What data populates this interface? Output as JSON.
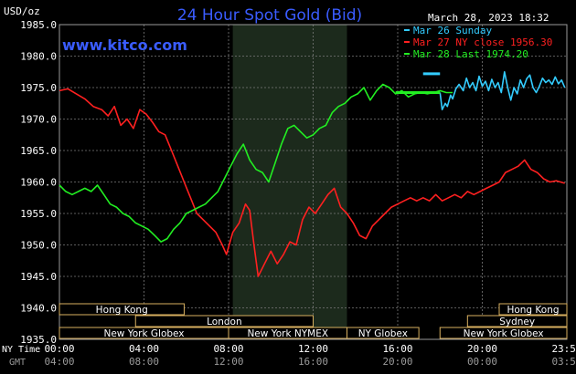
{
  "chart_data": {
    "type": "line",
    "title": "24 Hour Spot Gold (Bid)",
    "watermark": "www.kitco.com",
    "timestamp": "March 28, 2023 18:32",
    "ylabel": "USD/oz",
    "ylim": [
      1935.0,
      1985.0
    ],
    "yticks": [
      "1985.0",
      "1980.0",
      "1975.0",
      "1970.0",
      "1965.0",
      "1960.0",
      "1955.0",
      "1950.0",
      "1945.0",
      "1940.0",
      "1935.0"
    ],
    "xlim": [
      0,
      24
    ],
    "xticks_ny": [
      "00:00",
      "04:00",
      "08:00",
      "12:00",
      "16:00",
      "20:00",
      "23:59"
    ],
    "xticks_gmt": [
      "04:00",
      "08:00",
      "12:00",
      "16:00",
      "20:00",
      "00:00",
      "03:59"
    ],
    "axis_row_labels": {
      "ny": "NY Time",
      "gmt": "GMT"
    },
    "grid": true,
    "legend_position": "top-right",
    "colors": {
      "sunday": "#33ccff",
      "close": "#ff2020",
      "last": "#22ee22",
      "grid": "#7a7a7a",
      "title": "#3a5cff",
      "session_shade": "#1c2a1c",
      "session_border": "#d8b060"
    },
    "legend": [
      {
        "label": "Mar 26 Sunday",
        "series": "sunday"
      },
      {
        "label": "Mar 27 NY close 1956.30",
        "series": "close"
      },
      {
        "label": "Mar 28 Last 1974.20",
        "series": "last"
      }
    ],
    "series": [
      {
        "name": "Mar 26 Sunday",
        "key": "sunday",
        "x": [
          18.0,
          18.1,
          18.25,
          18.35,
          18.5,
          18.6,
          18.75,
          18.9,
          19.1,
          19.25,
          19.4,
          19.55,
          19.7,
          19.85,
          20.0,
          20.15,
          20.3,
          20.45,
          20.6,
          20.75,
          20.9,
          21.05,
          21.2,
          21.35,
          21.5,
          21.65,
          21.8,
          21.95,
          22.1,
          22.25,
          22.4,
          22.55,
          22.7,
          22.85,
          23.0,
          23.15,
          23.3,
          23.45,
          23.6,
          23.75,
          23.9
        ],
        "y": [
          1974.2,
          1971.5,
          1972.5,
          1972.0,
          1973.8,
          1973.2,
          1974.8,
          1975.5,
          1974.5,
          1976.5,
          1975.0,
          1975.8,
          1974.5,
          1976.8,
          1975.2,
          1976.0,
          1974.5,
          1976.3,
          1975.0,
          1975.8,
          1974.2,
          1977.5,
          1975.0,
          1973.0,
          1975.0,
          1974.0,
          1976.2,
          1975.0,
          1976.4,
          1977.0,
          1975.0,
          1974.2,
          1975.2,
          1976.5,
          1975.8,
          1976.2,
          1975.5,
          1976.7,
          1975.6,
          1976.2,
          1975.0
        ]
      },
      {
        "name": "Mar 27 NY close 1956.30",
        "key": "close",
        "x": [
          0.0,
          0.4,
          0.8,
          1.2,
          1.6,
          2.0,
          2.3,
          2.6,
          2.9,
          3.2,
          3.5,
          3.8,
          4.1,
          4.4,
          4.7,
          5.0,
          5.3,
          5.6,
          5.9,
          6.2,
          6.5,
          6.8,
          7.1,
          7.4,
          7.7,
          7.9,
          8.2,
          8.5,
          8.8,
          9.0,
          9.2,
          9.4,
          9.7,
          10.0,
          10.3,
          10.6,
          10.9,
          11.2,
          11.5,
          11.8,
          12.1,
          12.4,
          12.7,
          13.0,
          13.3,
          13.6,
          13.9,
          14.2,
          14.5,
          14.8,
          15.1,
          15.4,
          15.7,
          16.0,
          16.3,
          16.6,
          16.9,
          17.2,
          17.5,
          17.8,
          18.1,
          18.4,
          18.7,
          19.0,
          19.3,
          19.6,
          19.9,
          20.2,
          20.5,
          20.8,
          21.1,
          21.4,
          21.7,
          22.0,
          22.3,
          22.6,
          22.9,
          23.2,
          23.5,
          23.9
        ],
        "y": [
          1974.5,
          1974.8,
          1974.0,
          1973.2,
          1972.0,
          1971.5,
          1970.5,
          1972.0,
          1969.0,
          1970.0,
          1968.5,
          1971.5,
          1970.8,
          1969.5,
          1968.0,
          1967.5,
          1965.0,
          1962.5,
          1960.0,
          1957.5,
          1955.0,
          1954.0,
          1953.0,
          1952.0,
          1950.0,
          1948.5,
          1952.0,
          1953.5,
          1956.5,
          1955.5,
          1950.0,
          1945.0,
          1947.0,
          1949.0,
          1947.0,
          1948.5,
          1950.5,
          1950.0,
          1954.0,
          1956.0,
          1955.0,
          1956.5,
          1958.0,
          1959.0,
          1956.0,
          1955.0,
          1953.5,
          1951.5,
          1951.0,
          1953.0,
          1954.0,
          1955.0,
          1956.0,
          1956.5,
          1957.0,
          1957.5,
          1957.0,
          1957.5,
          1957.0,
          1958.0,
          1957.0,
          1957.5,
          1958.0,
          1957.5,
          1958.5,
          1958.0,
          1958.5,
          1959.0,
          1959.5,
          1960.0,
          1961.5,
          1962.0,
          1962.5,
          1963.5,
          1962.0,
          1961.5,
          1960.5,
          1960.0,
          1960.2,
          1959.8
        ]
      },
      {
        "name": "Mar 28 Last 1974.20",
        "key": "last",
        "x": [
          0.0,
          0.3,
          0.6,
          0.9,
          1.2,
          1.5,
          1.8,
          2.1,
          2.4,
          2.7,
          3.0,
          3.3,
          3.6,
          3.9,
          4.2,
          4.5,
          4.8,
          5.1,
          5.4,
          5.7,
          6.0,
          6.3,
          6.6,
          6.9,
          7.2,
          7.5,
          7.8,
          8.1,
          8.4,
          8.7,
          9.0,
          9.3,
          9.6,
          9.9,
          10.2,
          10.5,
          10.8,
          11.1,
          11.4,
          11.7,
          12.0,
          12.3,
          12.6,
          12.9,
          13.2,
          13.5,
          13.8,
          14.1,
          14.4,
          14.7,
          15.0,
          15.3,
          15.6,
          15.9,
          16.2,
          16.5,
          16.8,
          17.1,
          17.4,
          17.7,
          18.0,
          18.3,
          18.6
        ],
        "y": [
          1959.5,
          1958.5,
          1958.0,
          1958.5,
          1959.0,
          1958.5,
          1959.5,
          1958.0,
          1956.5,
          1956.0,
          1955.0,
          1954.5,
          1953.5,
          1953.0,
          1952.5,
          1951.5,
          1950.5,
          1951.0,
          1952.5,
          1953.5,
          1955.0,
          1955.5,
          1956.0,
          1956.5,
          1957.5,
          1958.5,
          1960.5,
          1962.5,
          1964.5,
          1966.0,
          1963.5,
          1962.0,
          1961.5,
          1960.0,
          1963.0,
          1966.0,
          1968.5,
          1969.0,
          1968.0,
          1967.0,
          1967.5,
          1968.5,
          1969.0,
          1971.0,
          1972.0,
          1972.5,
          1973.5,
          1974.0,
          1975.0,
          1973.0,
          1974.5,
          1975.5,
          1975.0,
          1974.0,
          1974.5,
          1973.5,
          1974.0,
          1974.2,
          1974.0,
          1974.2,
          1974.5,
          1974.2,
          1974.2
        ]
      }
    ],
    "sunday_open_marker": {
      "x": [
        17.2,
        18.0
      ],
      "y": 1977.2
    },
    "sessions": [
      {
        "label": "Hong Kong",
        "row": 0,
        "start": 0.0,
        "end": 5.9
      },
      {
        "label": "London",
        "row": 1,
        "start": 3.6,
        "end": 12.0
      },
      {
        "label": "New York Globex",
        "row": 2,
        "start": 0.0,
        "end": 8.0
      },
      {
        "label": "New York NYMEX",
        "row": 2,
        "start": 8.0,
        "end": 13.6
      },
      {
        "label": "NY Globex",
        "row": 2,
        "start": 13.6,
        "end": 17.0
      },
      {
        "label": "Hong Kong",
        "row": 0,
        "start": 20.8,
        "end": 24.0
      },
      {
        "label": "Sydney",
        "row": 1,
        "start": 19.3,
        "end": 24.0
      },
      {
        "label": "New York Globex",
        "row": 2,
        "start": 18.0,
        "end": 24.0
      }
    ],
    "shaded_region": {
      "start": 8.2,
      "end": 13.6
    }
  }
}
